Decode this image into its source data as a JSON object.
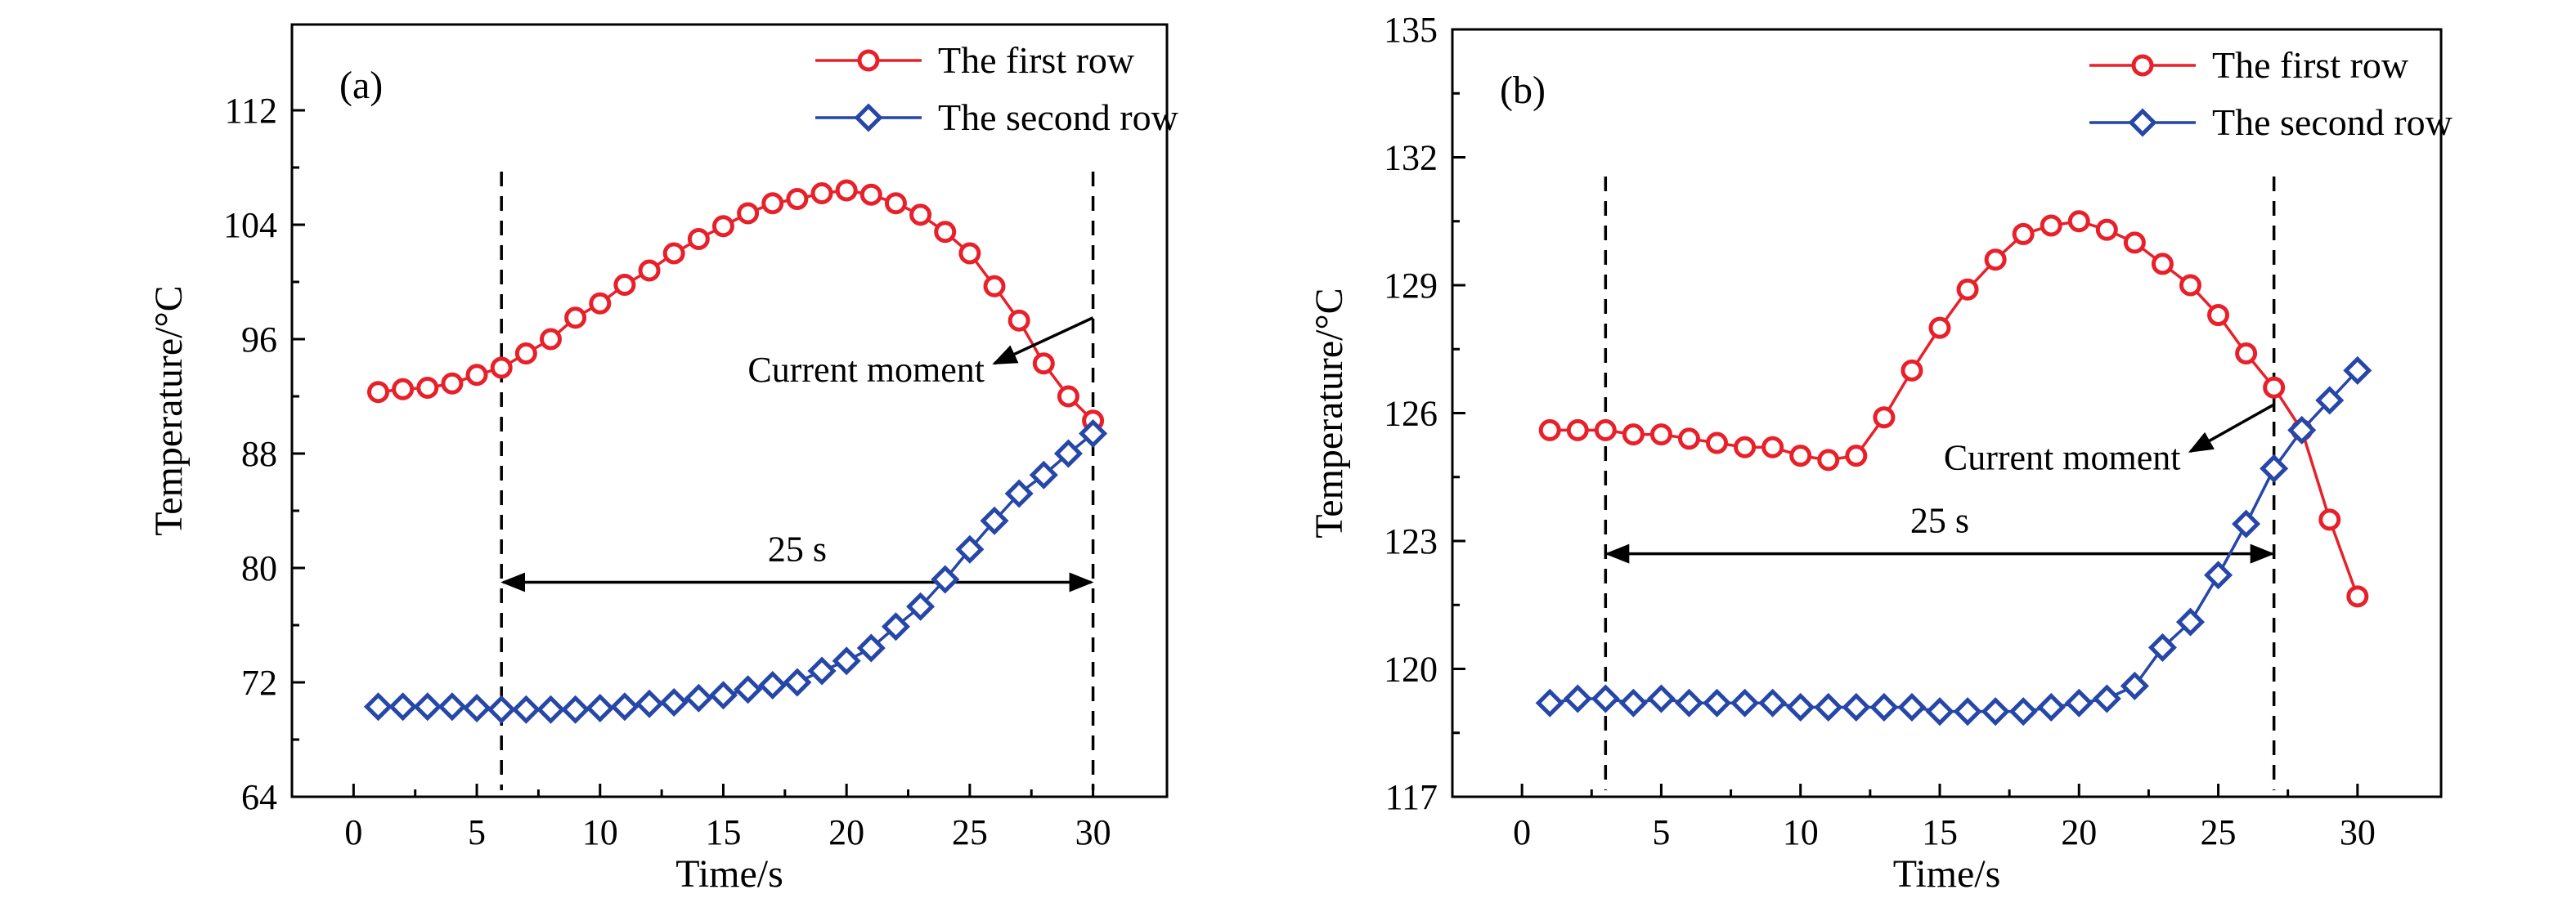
{
  "chart_data": [
    {
      "panel_label": "(a)",
      "type": "line",
      "xlabel": "Time/s",
      "ylabel": "Temperature/°C",
      "xlim": [
        -2.5,
        33
      ],
      "ylim": [
        64,
        118
      ],
      "xticks": [
        0,
        5,
        10,
        15,
        20,
        25,
        30
      ],
      "yticks": [
        64,
        72,
        80,
        88,
        96,
        104,
        112
      ],
      "grid": false,
      "legend_position": "top-right",
      "x": [
        1,
        2,
        3,
        4,
        5,
        6,
        7,
        8,
        9,
        10,
        11,
        12,
        13,
        14,
        15,
        16,
        17,
        18,
        19,
        20,
        21,
        22,
        23,
        24,
        25,
        26,
        27,
        28,
        29,
        30
      ],
      "series": [
        {
          "name": "The first row",
          "color": "#e8202a",
          "marker": "circle",
          "values": [
            92.3,
            92.5,
            92.6,
            92.9,
            93.5,
            94.0,
            95.0,
            96.0,
            97.5,
            98.5,
            99.8,
            100.8,
            102.0,
            103.0,
            103.9,
            104.8,
            105.5,
            105.8,
            106.2,
            106.4,
            106.1,
            105.5,
            104.7,
            103.5,
            102.0,
            99.7,
            97.3,
            94.3,
            92.0,
            90.3
          ]
        },
        {
          "name": "The second row",
          "color": "#2646a8",
          "marker": "diamond",
          "values": [
            70.3,
            70.3,
            70.3,
            70.3,
            70.2,
            70.1,
            70.1,
            70.1,
            70.1,
            70.2,
            70.3,
            70.5,
            70.6,
            70.9,
            71.1,
            71.5,
            71.8,
            72.0,
            72.8,
            73.5,
            74.4,
            75.9,
            77.3,
            79.2,
            81.3,
            83.3,
            85.2,
            86.5,
            88.0,
            89.4
          ]
        }
      ],
      "vlines": [
        6,
        30
      ],
      "span_label": "25 s",
      "span_y": 79,
      "annotation": {
        "text": "Current moment",
        "from_x": 30,
        "from_y": 97.5,
        "to_x": 26,
        "to_y": 94.3
      }
    },
    {
      "panel_label": "(b)",
      "type": "line",
      "xlabel": "Time/s",
      "ylabel": "Temperature/°C",
      "xlim": [
        -2.5,
        33
      ],
      "ylim": [
        117,
        135
      ],
      "xticks": [
        0,
        5,
        10,
        15,
        20,
        25,
        30
      ],
      "yticks": [
        117,
        120,
        123,
        126,
        129,
        132,
        135
      ],
      "grid": false,
      "legend_position": "top-right",
      "x": [
        1,
        2,
        3,
        4,
        5,
        6,
        7,
        8,
        9,
        10,
        11,
        12,
        13,
        14,
        15,
        16,
        17,
        18,
        19,
        20,
        21,
        22,
        23,
        24,
        25,
        26,
        27,
        28,
        29,
        30
      ],
      "series": [
        {
          "name": "The first row",
          "color": "#e8202a",
          "marker": "circle",
          "values": [
            125.6,
            125.6,
            125.6,
            125.5,
            125.5,
            125.4,
            125.3,
            125.2,
            125.2,
            125.0,
            124.9,
            125.0,
            125.9,
            127.0,
            128.0,
            128.9,
            129.6,
            130.2,
            130.4,
            130.5,
            130.3,
            130.0,
            129.5,
            129.0,
            128.3,
            127.4,
            126.6,
            125.6,
            123.5,
            121.7
          ]
        },
        {
          "name": "The second row",
          "color": "#2646a8",
          "marker": "diamond",
          "values": [
            119.2,
            119.3,
            119.3,
            119.2,
            119.3,
            119.2,
            119.2,
            119.2,
            119.2,
            119.1,
            119.1,
            119.1,
            119.1,
            119.1,
            119.0,
            119.0,
            119.0,
            119.0,
            119.1,
            119.2,
            119.3,
            119.6,
            120.5,
            121.1,
            122.2,
            123.4,
            124.7,
            125.6,
            126.3,
            127.0
          ]
        }
      ],
      "vlines": [
        3,
        27
      ],
      "span_label": "25 s",
      "span_y": 122.7,
      "annotation": {
        "text": "Current moment",
        "from_x": 27,
        "from_y": 126.2,
        "to_x": 24,
        "to_y": 125.1
      }
    }
  ]
}
